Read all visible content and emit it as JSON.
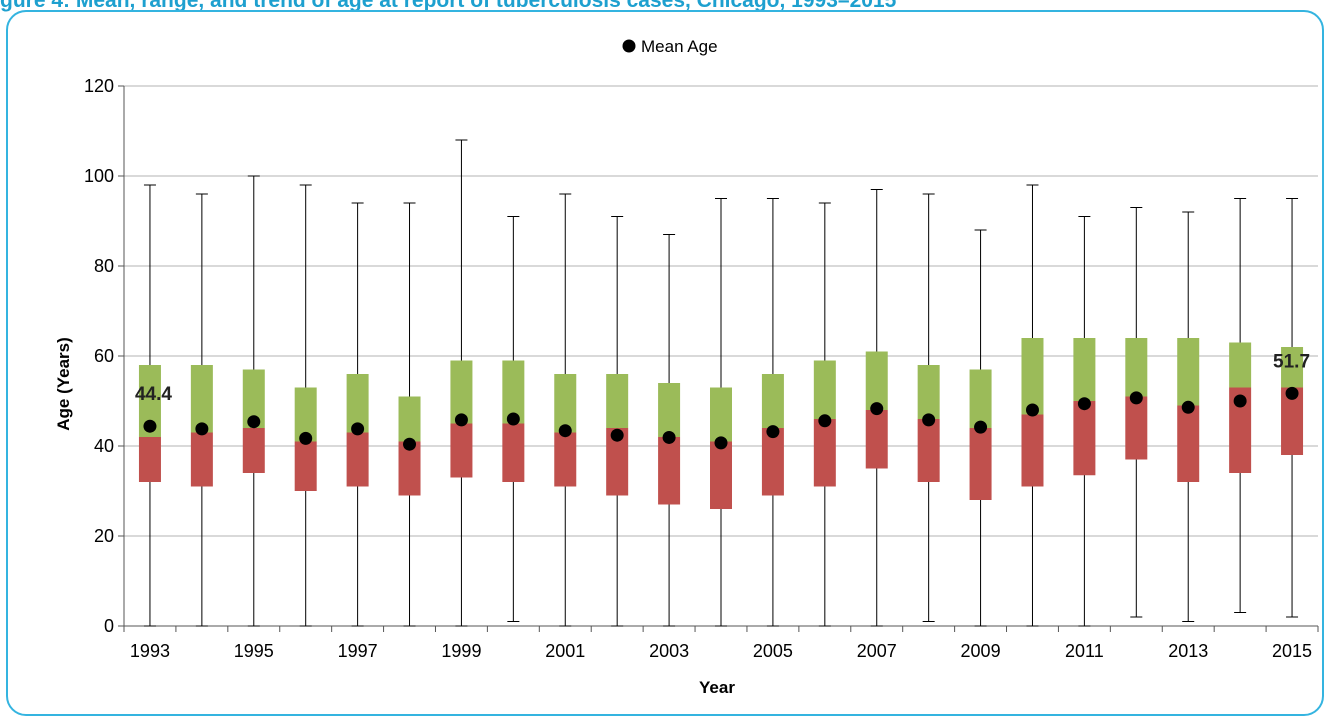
{
  "figure": {
    "title": "gure 4: Mean, range, and trend of age at report of tuberculosis cases, Chicago, 1993–2015"
  },
  "colors": {
    "upper_box": "#9bbb59",
    "lower_box": "#c0504d",
    "mean_marker": "#000000",
    "grid": "#b3b3b3",
    "frame_border": "#34b4e0",
    "title": "#1ea0cf"
  },
  "chart_data": {
    "type": "box",
    "legend": {
      "label": "Mean Age",
      "placement": "top-center",
      "marker": "circle"
    },
    "xlabel": "Year",
    "ylabel": "Age (Years)",
    "ylim": [
      0,
      120
    ],
    "yticks": [
      0,
      20,
      40,
      60,
      80,
      100,
      120
    ],
    "grid": true,
    "categories": [
      "1993",
      "1994",
      "1995",
      "1996",
      "1997",
      "1998",
      "1999",
      "2000",
      "2001",
      "2002",
      "2003",
      "2004",
      "2005",
      "2006",
      "2007",
      "2008",
      "2009",
      "2010",
      "2011",
      "2012",
      "2013",
      "2014",
      "2015"
    ],
    "x_tick_labels": [
      "1993",
      "1995",
      "1997",
      "1999",
      "2001",
      "2003",
      "2005",
      "2007",
      "2009",
      "2011",
      "2013",
      "2015"
    ],
    "min": [
      0,
      0,
      0,
      0,
      0,
      0,
      0,
      1,
      0,
      0,
      0,
      0,
      0,
      0,
      0,
      1,
      0,
      0,
      0,
      2,
      1,
      3,
      2
    ],
    "q1": [
      32,
      31,
      34,
      30,
      31,
      29,
      33,
      32,
      31,
      29,
      27,
      26,
      29,
      31,
      35,
      32,
      28,
      31,
      33.5,
      37,
      32,
      34,
      38
    ],
    "median": [
      42,
      43,
      44,
      41,
      43,
      41,
      45,
      45,
      43,
      44,
      42,
      41,
      44,
      46,
      48,
      46,
      44,
      47,
      50,
      51,
      49,
      53,
      53
    ],
    "q3": [
      58,
      58,
      57,
      53,
      56,
      51,
      59,
      59,
      56,
      56,
      54,
      53,
      56,
      59,
      61,
      58,
      57,
      64,
      64,
      64,
      64,
      63,
      62
    ],
    "max": [
      98,
      96,
      100,
      98,
      94,
      94,
      108,
      91,
      96,
      91,
      87,
      95,
      95,
      94,
      97,
      96,
      88,
      98,
      91,
      93,
      92,
      95,
      95
    ],
    "mean": [
      44.4,
      43.8,
      45.4,
      41.7,
      43.8,
      40.4,
      45.8,
      46.0,
      43.4,
      42.4,
      41.9,
      40.7,
      43.2,
      45.6,
      48.3,
      45.8,
      44.2,
      48.0,
      49.4,
      50.7,
      48.6,
      50.0,
      51.7
    ],
    "annotations": [
      {
        "category": "1993",
        "text": "44.4"
      },
      {
        "category": "2015",
        "text": "51.7"
      }
    ]
  }
}
